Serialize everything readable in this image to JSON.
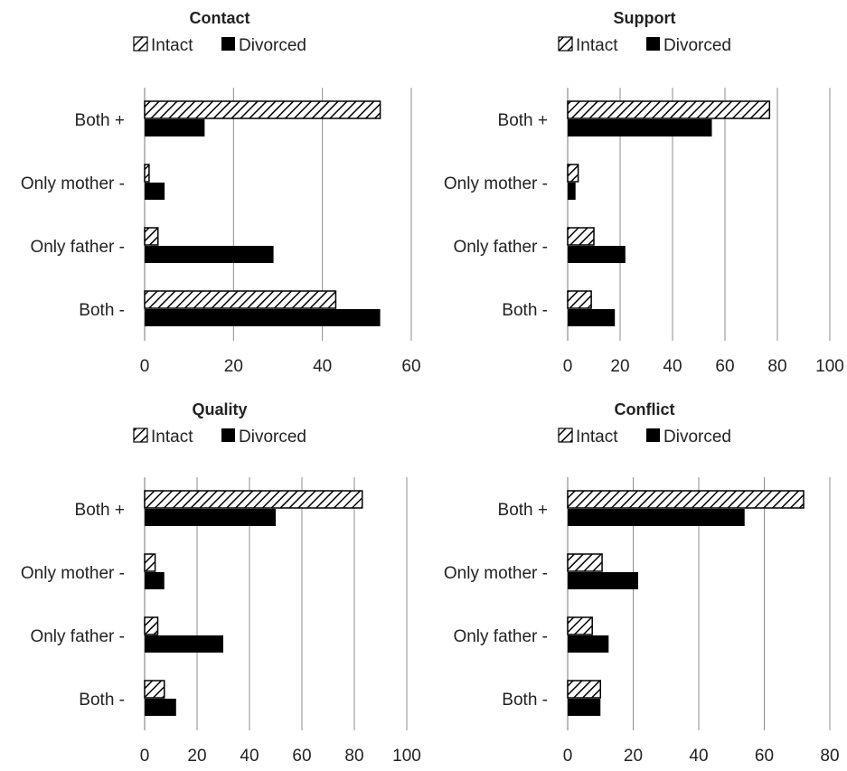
{
  "legend_labels": {
    "intact": "Intact",
    "divorced": "Divorced"
  },
  "colors": {
    "intact_stroke": "#000000",
    "divorced_fill": "#000000",
    "grid": "#8c8c8c",
    "background": "#ffffff"
  },
  "chart_data": [
    {
      "type": "bar",
      "orientation": "horizontal",
      "title": "Contact",
      "categories": [
        "Both +",
        "Only mother -",
        "Only father -",
        "Both -"
      ],
      "series": [
        {
          "name": "Intact",
          "pattern": "diagonal-hatch",
          "values": [
            53,
            1,
            3,
            43
          ]
        },
        {
          "name": "Divorced",
          "pattern": "solid",
          "values": [
            13.5,
            4.5,
            29,
            53
          ]
        }
      ],
      "xlim": [
        0,
        60
      ],
      "xticks": [
        0,
        20,
        40,
        60
      ],
      "grid": true,
      "legend_position": "top"
    },
    {
      "type": "bar",
      "orientation": "horizontal",
      "title": "Support",
      "categories": [
        "Both +",
        "Only mother -",
        "Only father -",
        "Both -"
      ],
      "series": [
        {
          "name": "Intact",
          "pattern": "diagonal-hatch",
          "values": [
            77,
            4,
            10,
            9
          ]
        },
        {
          "name": "Divorced",
          "pattern": "solid",
          "values": [
            55,
            3,
            22,
            18
          ]
        }
      ],
      "xlim": [
        0,
        100
      ],
      "xticks": [
        0,
        20,
        40,
        60,
        80,
        100
      ],
      "grid": true,
      "legend_position": "top"
    },
    {
      "type": "bar",
      "orientation": "horizontal",
      "title": "Quality",
      "categories": [
        "Both +",
        "Only mother -",
        "Only father -",
        "Both -"
      ],
      "series": [
        {
          "name": "Intact",
          "pattern": "diagonal-hatch",
          "values": [
            83,
            4,
            5,
            7.5
          ]
        },
        {
          "name": "Divorced",
          "pattern": "solid",
          "values": [
            50,
            7.5,
            30,
            12
          ]
        }
      ],
      "xlim": [
        0,
        100
      ],
      "xticks": [
        0,
        20,
        40,
        60,
        80,
        100
      ],
      "grid": true,
      "legend_position": "top"
    },
    {
      "type": "bar",
      "orientation": "horizontal",
      "title": "Conflict",
      "categories": [
        "Both +",
        "Only mother -",
        "Only father -",
        "Both -"
      ],
      "series": [
        {
          "name": "Intact",
          "pattern": "diagonal-hatch",
          "values": [
            72,
            10.5,
            7.5,
            10
          ]
        },
        {
          "name": "Divorced",
          "pattern": "solid",
          "values": [
            54,
            21.5,
            12.5,
            10
          ]
        }
      ],
      "xlim": [
        0,
        80
      ],
      "xticks": [
        0,
        20,
        40,
        60,
        80
      ],
      "grid": true,
      "legend_position": "top"
    }
  ]
}
